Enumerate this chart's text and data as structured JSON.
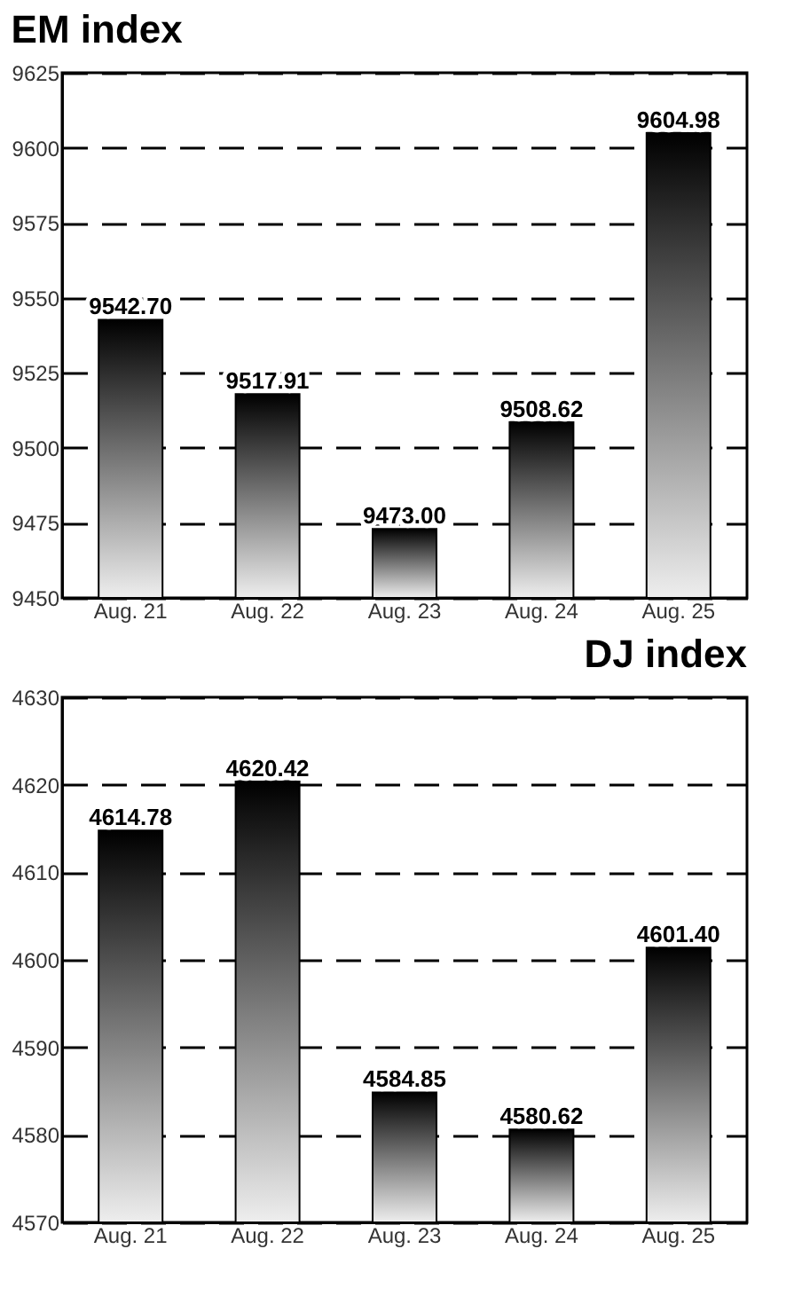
{
  "chart_data": [
    {
      "type": "bar",
      "title": "EM index",
      "categories": [
        "Aug. 21",
        "Aug. 22",
        "Aug. 23",
        "Aug. 24",
        "Aug. 25"
      ],
      "values": [
        9542.7,
        9517.91,
        9473.0,
        9508.62,
        9604.98
      ],
      "value_labels": [
        "9542.70",
        "9517.91",
        "9473.00",
        "9508.62",
        "9604.98"
      ],
      "color": "#000000",
      "ylim": [
        9450,
        9625
      ],
      "yticks": [
        9450,
        9475,
        9500,
        9525,
        9550,
        9575,
        9600,
        9625
      ],
      "grid": "y"
    },
    {
      "type": "bar",
      "title": "DJ index",
      "categories": [
        "Aug. 21",
        "Aug. 22",
        "Aug. 23",
        "Aug. 24",
        "Aug. 25"
      ],
      "values": [
        4614.78,
        4620.42,
        4584.85,
        4580.62,
        4601.4
      ],
      "value_labels": [
        "4614.78",
        "4620.42",
        "4584.85",
        "4580.62",
        "4601.40"
      ],
      "color": "#000000",
      "ylim": [
        4570,
        4630
      ],
      "yticks": [
        4570,
        4580,
        4590,
        4600,
        4610,
        4620,
        4630
      ],
      "grid": "y"
    }
  ]
}
